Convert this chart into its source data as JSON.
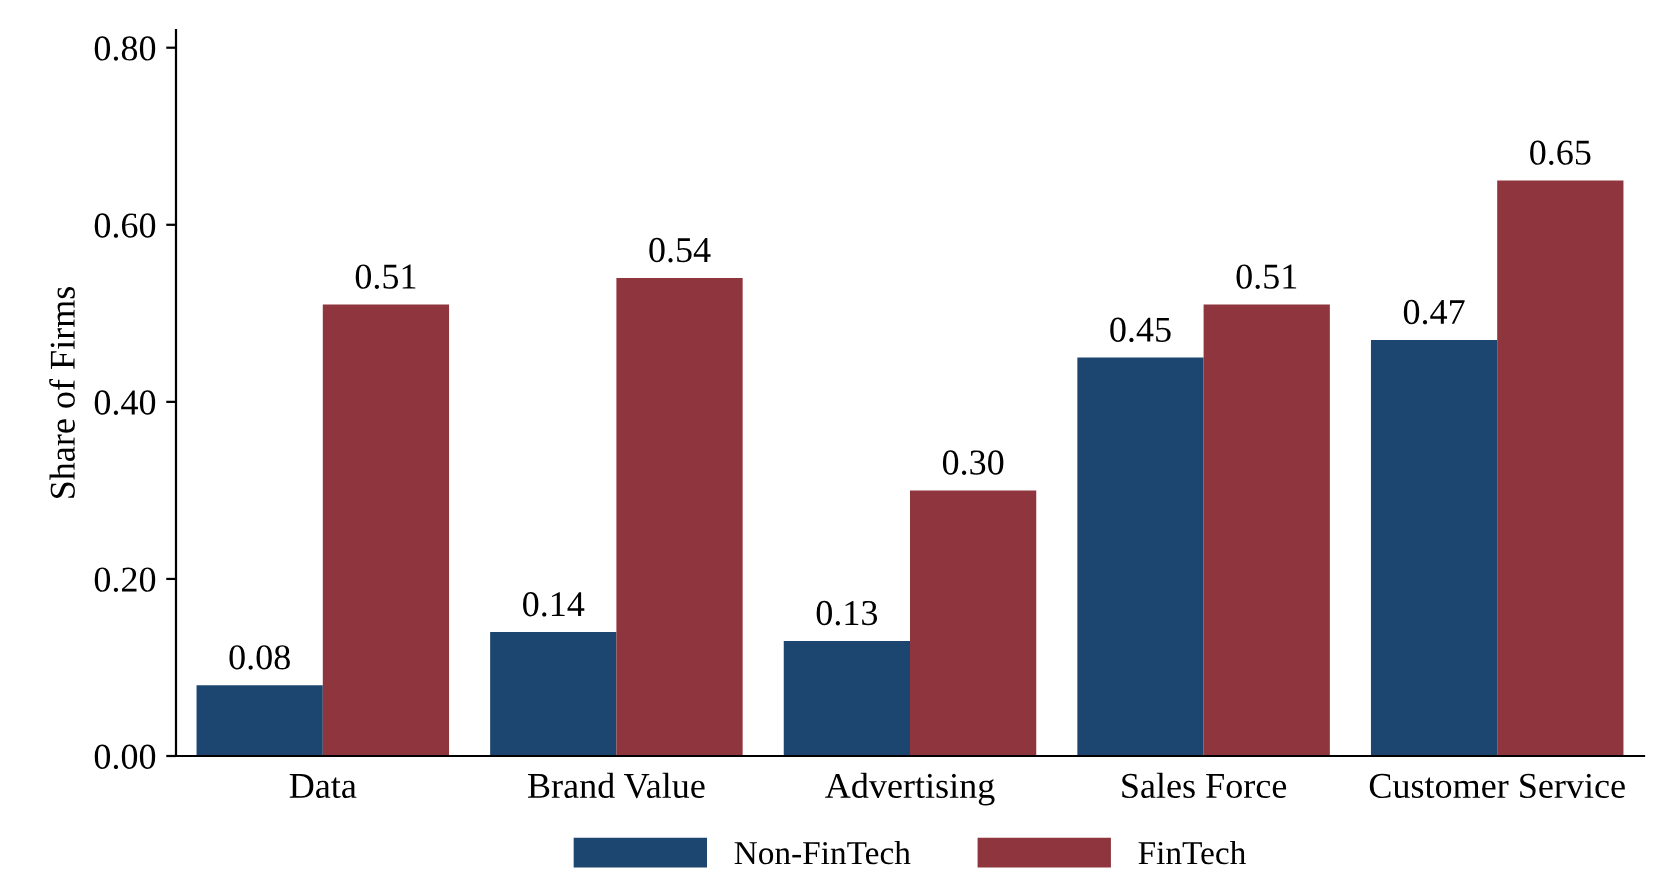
{
  "chart_data": {
    "type": "bar",
    "ylabel": "Share of Firms",
    "categories": [
      "Data",
      "Brand Value",
      "Advertising",
      "Sales Force",
      "Customer Service"
    ],
    "series": [
      {
        "name": "Non-FinTech",
        "color": "#1c4670",
        "values": [
          0.08,
          0.14,
          0.13,
          0.45,
          0.47
        ],
        "value_labels": [
          "0.08",
          "0.14",
          "0.13",
          "0.45",
          "0.47"
        ]
      },
      {
        "name": "FinTech",
        "color": "#8e353d",
        "values": [
          0.51,
          0.54,
          0.3,
          0.51,
          0.65
        ],
        "value_labels": [
          "0.51",
          "0.54",
          "0.30",
          "0.51",
          "0.65"
        ]
      }
    ],
    "ylim": [
      0,
      0.82
    ],
    "yticks": [
      {
        "value": 0,
        "label": "0.00"
      },
      {
        "value": 0.2,
        "label": "0.20"
      },
      {
        "value": 0.4,
        "label": "0.40"
      },
      {
        "value": 0.6,
        "label": "0.60"
      },
      {
        "value": 0.8,
        "label": "0.80"
      }
    ],
    "grid": false,
    "legend": "bottom"
  }
}
